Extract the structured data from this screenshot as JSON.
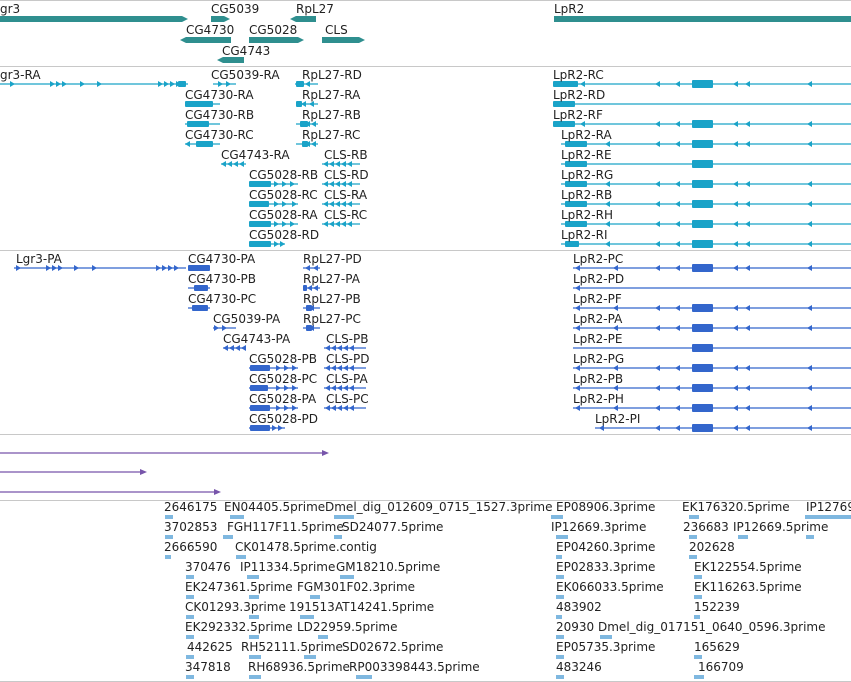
{
  "colors": {
    "gene": "#2f8f8f",
    "transcript": "#1aa3c8",
    "protein": "#3366cc",
    "purple": "#7755aa",
    "est": "#7fb8e0",
    "separator": "#c8c8c8",
    "label": "#222222"
  },
  "tracks": {
    "genes": {
      "labels": [
        "gr3",
        "CG5039",
        "RpL27",
        "LpR2",
        "CG4730",
        "CG5028",
        "CLS",
        "CG4743"
      ]
    },
    "transcripts": {
      "labels": [
        "gr3-RA",
        "CG5039-RA",
        "RpL27-RD",
        "LpR2-RC",
        "CG4730-RA",
        "RpL27-RA",
        "LpR2-RD",
        "CG4730-RB",
        "RpL27-RB",
        "LpR2-RF",
        "CG4730-RC",
        "RpL27-RC",
        "LpR2-RA",
        "CG4743-RA",
        "CLS-RB",
        "LpR2-RE",
        "CG5028-RB",
        "CLS-RD",
        "LpR2-RG",
        "CG5028-RC",
        "CLS-RA",
        "LpR2-RB",
        "CG5028-RA",
        "CLS-RC",
        "LpR2-RH",
        "CG5028-RD",
        "LpR2-RI"
      ]
    },
    "proteins": {
      "labels": [
        "Lgr3-PA",
        "CG4730-PA",
        "RpL27-PD",
        "LpR2-PC",
        "CG4730-PB",
        "RpL27-PA",
        "LpR2-PD",
        "CG4730-PC",
        "RpL27-PB",
        "LpR2-PF",
        "CG5039-PA",
        "RpL27-PC",
        "LpR2-PA",
        "CG4743-PA",
        "CLS-PB",
        "LpR2-PE",
        "CG5028-PB",
        "CLS-PD",
        "LpR2-PG",
        "CG5028-PC",
        "CLS-PA",
        "LpR2-PB",
        "CG5028-PA",
        "CLS-PC",
        "LpR2-PH",
        "CG5028-PD",
        "LpR2-PI"
      ]
    },
    "ests": {
      "labels": [
        "2646175",
        "EN04405.5prime",
        "Dmel_dig_012609_0715_1527.3prime",
        "EP08906.3prime",
        "EK176320.5prime",
        "IP12769",
        "3702853",
        "FGH117F11.5prime",
        "SD24077.5prime",
        "IP12669.3prime",
        "236683",
        "IP12669.5prime",
        "2666590",
        "CK01478.5prime.contig",
        "EP04260.3prime",
        "202628",
        "370476",
        "IP11334.5prime",
        "GM18210.5prime",
        "EP02833.3prime",
        "EK122554.5prime",
        "EK247361.5prime",
        "FGM301F02.3prime",
        "EK066033.5prime",
        "EK116263.5prime",
        "CK01293.3prime",
        "191513",
        "AT14241.5prime",
        "483902",
        "152239",
        "EK292332.5prime",
        "LD22959.5prime",
        "20930",
        "Dmel_dig_017151_0640_0596.3prime",
        "442625",
        "RH52111.5prime",
        "SD02672.5prime",
        "EP05735.3prime",
        "165629",
        "347818",
        "RH68936.5prime",
        "RP003398443.5prime",
        "483246",
        "166709"
      ]
    }
  }
}
